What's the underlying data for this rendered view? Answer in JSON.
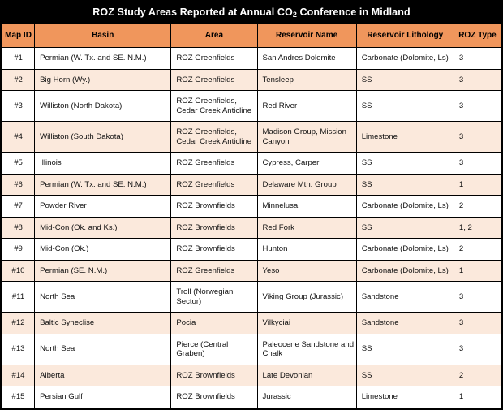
{
  "title": {
    "prefix": "ROZ Study Areas Reported at Annual CO",
    "sub": "2",
    "suffix": " Conference in Midland"
  },
  "colors": {
    "title_bg": "#000000",
    "title_fg": "#ffffff",
    "header_bg": "#F0965C",
    "stripe_bg": "#FBE9DC",
    "row_bg": "#ffffff",
    "border_color": "#000000"
  },
  "table": {
    "columns": [
      "Map ID",
      "Basin",
      "Area",
      "Reservoir Name",
      "Reservoir Lithology",
      "ROZ Type"
    ],
    "rows": [
      {
        "map_id": "#1",
        "basin": "Permian (W. Tx. and SE. N.M.)",
        "area": "ROZ Greenfields",
        "reservoir_name": "San Andres Dolomite",
        "lithology": "Carbonate (Dolomite, Ls)",
        "roz_type": "3"
      },
      {
        "map_id": "#2",
        "basin": "Big Horn (Wy.)",
        "area": "ROZ Greenfields",
        "reservoir_name": "Tensleep",
        "lithology": "SS",
        "roz_type": "3"
      },
      {
        "map_id": "#3",
        "basin": "Williston (North Dakota)",
        "area": "ROZ Greenfields, Cedar Creek Anticline",
        "reservoir_name": "Red River",
        "lithology": "SS",
        "roz_type": "3"
      },
      {
        "map_id": "#4",
        "basin": "Williston (South Dakota)",
        "area": "ROZ Greenfields, Cedar Creek Anticline",
        "reservoir_name": "Madison Group, Mission Canyon",
        "lithology": "Limestone",
        "roz_type": "3"
      },
      {
        "map_id": "#5",
        "basin": "Illinois",
        "area": "ROZ Greenfields",
        "reservoir_name": "Cypress, Carper",
        "lithology": "SS",
        "roz_type": "3"
      },
      {
        "map_id": "#6",
        "basin": "Permian (W. Tx. and SE. N.M.)",
        "area": "ROZ Greenfields",
        "reservoir_name": "Delaware Mtn. Group",
        "lithology": "SS",
        "roz_type": "1"
      },
      {
        "map_id": "#7",
        "basin": "Powder River",
        "area": "ROZ Brownfields",
        "reservoir_name": "Minnelusa",
        "lithology": "Carbonate (Dolomite, Ls)",
        "roz_type": "2"
      },
      {
        "map_id": "#8",
        "basin": "Mid-Con (Ok. and Ks.)",
        "area": "ROZ Brownfields",
        "reservoir_name": "Red Fork",
        "lithology": "SS",
        "roz_type": "1, 2"
      },
      {
        "map_id": "#9",
        "basin": "Mid-Con (Ok.)",
        "area": "ROZ Brownfields",
        "reservoir_name": "Hunton",
        "lithology": "Carbonate (Dolomite, Ls)",
        "roz_type": "2"
      },
      {
        "map_id": "#10",
        "basin": "Permian (SE. N.M.)",
        "area": "ROZ Greenfields",
        "reservoir_name": "Yeso",
        "lithology": "Carbonate (Dolomite, Ls)",
        "roz_type": "1"
      },
      {
        "map_id": "#11",
        "basin": "North Sea",
        "area": "Troll (Norwegian Sector)",
        "reservoir_name": "Viking Group (Jurassic)",
        "lithology": "Sandstone",
        "roz_type": "3"
      },
      {
        "map_id": "#12",
        "basin": "Baltic Syneclise",
        "area": "Pocia",
        "reservoir_name": "Vilkyciai",
        "lithology": "Sandstone",
        "roz_type": "3"
      },
      {
        "map_id": "#13",
        "basin": "North Sea",
        "area": "Pierce (Central Graben)",
        "reservoir_name": "Paleocene Sandstone and Chalk",
        "lithology": "SS",
        "roz_type": "3"
      },
      {
        "map_id": "#14",
        "basin": "Alberta",
        "area": "ROZ Brownfields",
        "reservoir_name": "Late Devonian",
        "lithology": "SS",
        "roz_type": "2"
      },
      {
        "map_id": "#15",
        "basin": "Persian Gulf",
        "area": "ROZ Brownfields",
        "reservoir_name": "Jurassic",
        "lithology": "Limestone",
        "roz_type": "1"
      }
    ]
  }
}
